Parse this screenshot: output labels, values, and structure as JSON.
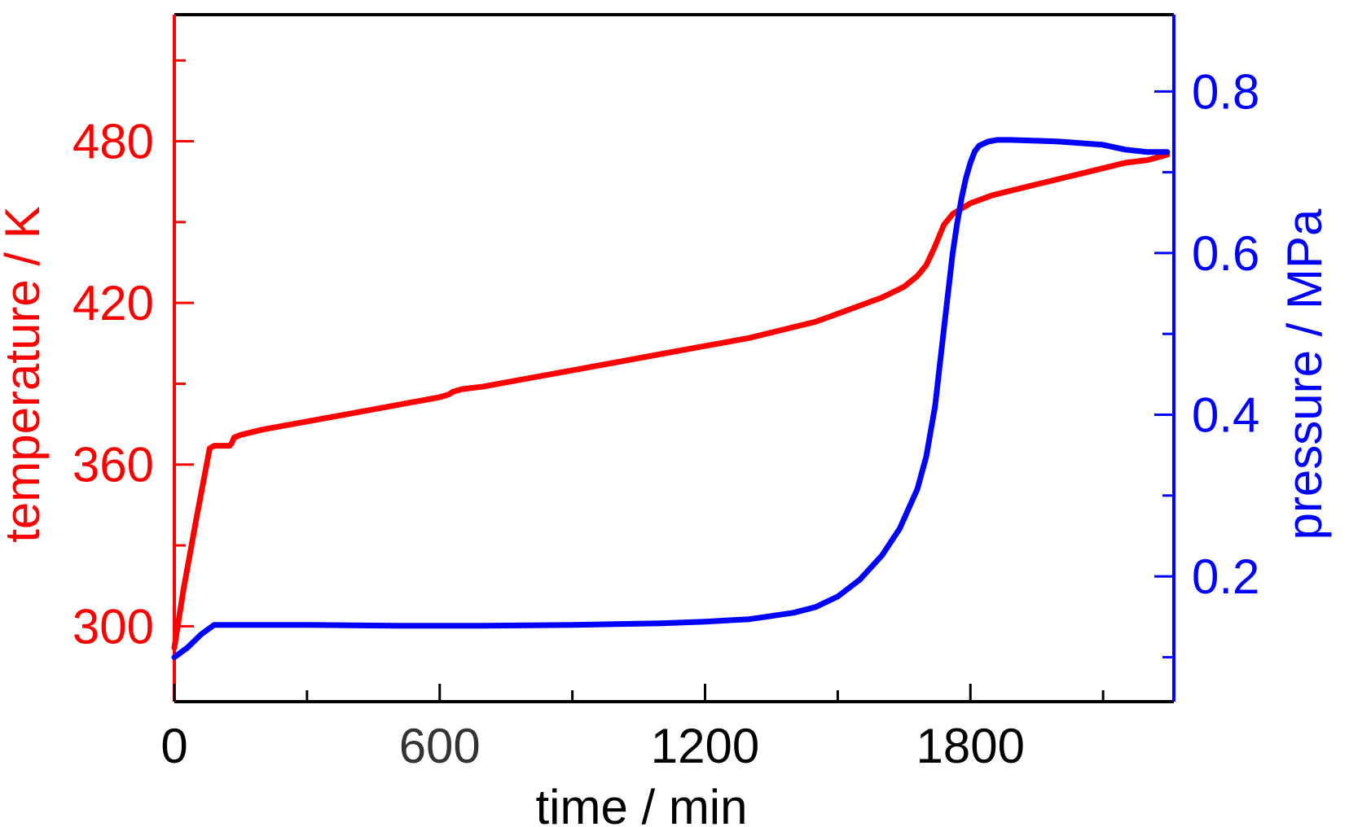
{
  "chart_data": {
    "type": "line",
    "title": "",
    "xlabel": "time / min",
    "ylabel_left": "temperature / K",
    "ylabel_right": "pressure / MPa",
    "xlim": [
      0,
      2260
    ],
    "ylim_left": [
      272,
      527
    ],
    "ylim_right": [
      0.045,
      0.895
    ],
    "x_ticks": [
      "0",
      "600",
      "1200",
      "1800"
    ],
    "y_left_ticks": [
      "300",
      "360",
      "420",
      "480"
    ],
    "y_right_ticks": [
      "0.2",
      "0.4",
      "0.6",
      "0.8"
    ],
    "grid": false,
    "colors": {
      "temperature": "#ff0000",
      "pressure": "#0000ff",
      "frame": "#000000",
      "x_ticks": "#000000",
      "x_tick_600": "#333333"
    },
    "series": [
      {
        "axis": "left",
        "x": [
          0,
          20,
          50,
          80,
          90,
          110,
          125,
          130,
          135,
          150,
          200,
          300,
          400,
          500,
          600,
          620,
          630,
          650,
          700,
          800,
          900,
          1000,
          1100,
          1200,
          1300,
          1400,
          1450,
          1500,
          1550,
          1600,
          1650,
          1680,
          1700,
          1720,
          1740,
          1760,
          1780,
          1800,
          1850,
          1900,
          1950,
          2000,
          2050,
          2100,
          2150,
          2200,
          2245
        ],
        "y": [
          292,
          313,
          340,
          366,
          367,
          367,
          367,
          368,
          370,
          371,
          373,
          376,
          379,
          382,
          385,
          386,
          387,
          388,
          389,
          392,
          395,
          398,
          401,
          404,
          407,
          411,
          413,
          416,
          419,
          422,
          426,
          430,
          434,
          441,
          449,
          453,
          455,
          457,
          460,
          462,
          464,
          466,
          468,
          470,
          472,
          473,
          475
        ]
      },
      {
        "axis": "right",
        "x": [
          0,
          30,
          60,
          90,
          150,
          300,
          500,
          700,
          900,
          1100,
          1200,
          1300,
          1400,
          1450,
          1500,
          1550,
          1600,
          1640,
          1680,
          1700,
          1720,
          1740,
          1760,
          1770,
          1780,
          1790,
          1800,
          1810,
          1820,
          1840,
          1860,
          1890,
          1950,
          2000,
          2100,
          2150,
          2200,
          2245
        ],
        "y": [
          0.1,
          0.112,
          0.128,
          0.14,
          0.14,
          0.14,
          0.139,
          0.139,
          0.14,
          0.142,
          0.144,
          0.147,
          0.155,
          0.162,
          0.175,
          0.196,
          0.226,
          0.259,
          0.308,
          0.348,
          0.41,
          0.506,
          0.6,
          0.637,
          0.668,
          0.693,
          0.712,
          0.726,
          0.733,
          0.738,
          0.74,
          0.74,
          0.739,
          0.738,
          0.734,
          0.728,
          0.725,
          0.725
        ]
      }
    ]
  }
}
